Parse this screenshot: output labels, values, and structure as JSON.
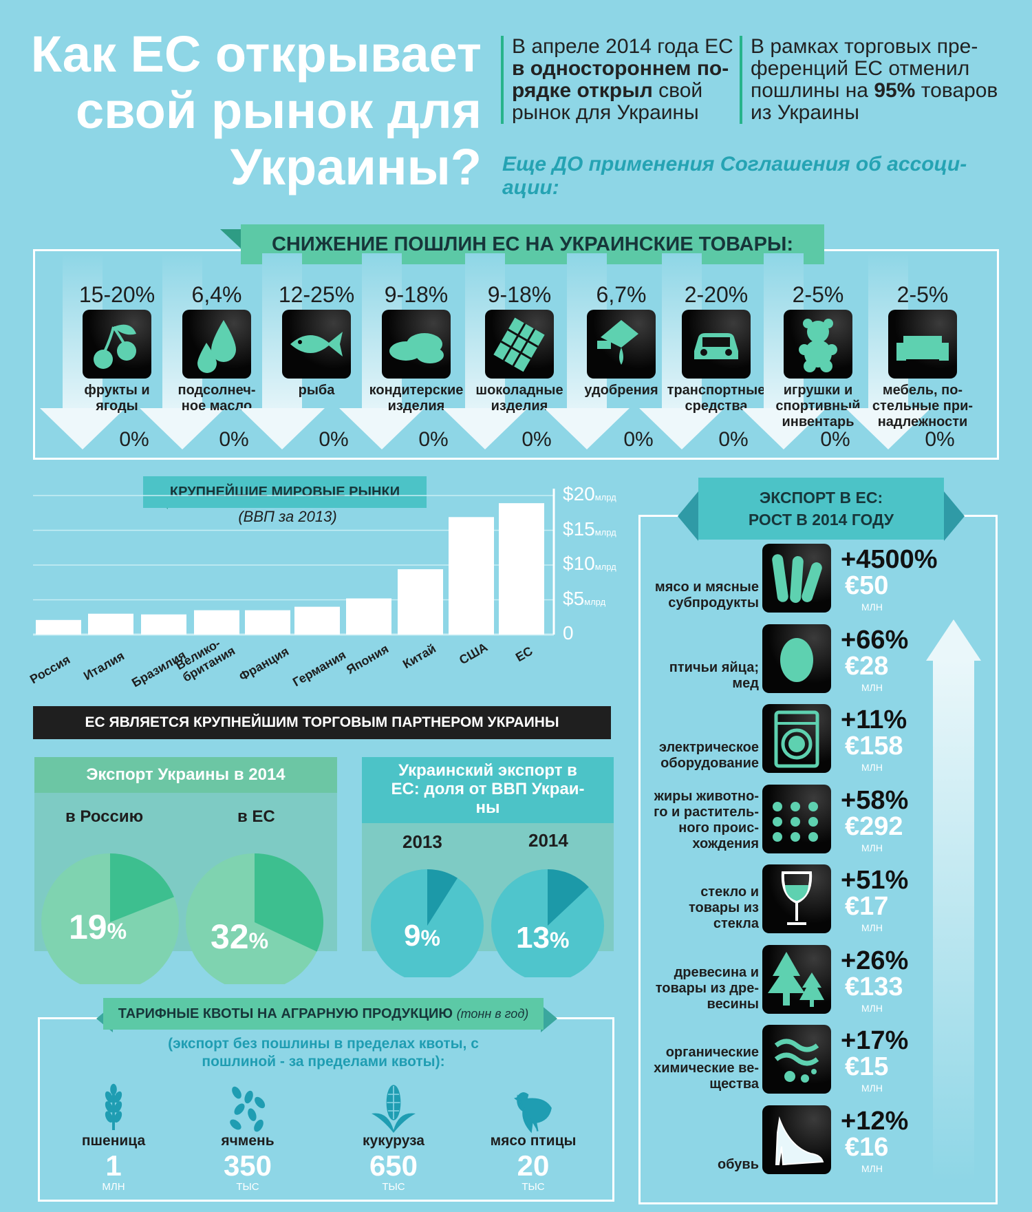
{
  "header": {
    "title_lines": [
      "Как ЕС открывает",
      "свой рынок для",
      "Украины?"
    ],
    "intro_left": {
      "lines": [
        [
          {
            "t": "В апреле 2014 года ЕС",
            "b": false
          }
        ],
        [
          {
            "t": "в одностороннем по-",
            "b": true
          }
        ],
        [
          {
            "t": "рядке открыл",
            "b": true
          },
          {
            "t": " свой",
            "b": false
          }
        ],
        [
          {
            "t": "рынок для Украины",
            "b": false
          }
        ]
      ]
    },
    "intro_right": {
      "lines": [
        [
          {
            "t": "В рамках торговых пре-",
            "b": false
          }
        ],
        [
          {
            "t": "ференций ЕС отменил",
            "b": false
          }
        ],
        [
          {
            "t": "пошлины на ",
            "b": false
          },
          {
            "t": "95%",
            "b": true
          },
          {
            "t": " товаров",
            "b": false
          }
        ],
        [
          {
            "t": "из Украины",
            "b": false
          }
        ]
      ]
    },
    "subnote_lines": [
      "Еще ДО применения Соглашения об ассоци-",
      "ации:"
    ]
  },
  "tariffs": {
    "title": "СНИЖЕНИЕ ПОШЛИН ЕС НА УКРАИНСКИЕ ТОВАРЫ:",
    "items": [
      {
        "from": "15-20%",
        "to": "0%",
        "name_lines": [
          "фрукты и",
          "ягоды"
        ],
        "icon": "cherry-icon"
      },
      {
        "from": "6,4%",
        "to": "0%",
        "name_lines": [
          "подсолнеч-",
          "ное масло"
        ],
        "icon": "oil-drops-icon"
      },
      {
        "from": "12-25%",
        "to": "0%",
        "name_lines": [
          "рыба"
        ],
        "icon": "fish-icon"
      },
      {
        "from": "9-18%",
        "to": "0%",
        "name_lines": [
          "кондитерские",
          "изделия"
        ],
        "icon": "bread-icon"
      },
      {
        "from": "9-18%",
        "to": "0%",
        "name_lines": [
          "шоколадные",
          "изделия"
        ],
        "icon": "chocolate-icon"
      },
      {
        "from": "6,7%",
        "to": "0%",
        "name_lines": [
          "удобрения"
        ],
        "icon": "fertilizer-icon"
      },
      {
        "from": "2-20%",
        "to": "0%",
        "name_lines": [
          "транспортные",
          "средства"
        ],
        "icon": "car-icon"
      },
      {
        "from": "2-5%",
        "to": "0%",
        "name_lines": [
          "игрушки и",
          "спортивный",
          "инвентарь"
        ],
        "icon": "teddy-bear-icon"
      },
      {
        "from": "2-5%",
        "to": "0%",
        "name_lines": [
          "мебель, по-",
          "стельные при-",
          "надлежности"
        ],
        "icon": "sofa-icon"
      }
    ]
  },
  "markets": {
    "title": "КРУПНЕЙШИЕ МИРОВЫЕ РЫНКИ",
    "subtitle": "(ВВП за 2013)",
    "tick_labels": [
      {
        "v": 20,
        "t": "$20",
        "u": "млрд"
      },
      {
        "v": 15,
        "t": "$15",
        "u": "млрд"
      },
      {
        "v": 10,
        "t": "$10",
        "u": "млрд"
      },
      {
        "v": 5,
        "t": "$5",
        "u": "млрд"
      },
      {
        "v": 0,
        "t": "0",
        "u": ""
      }
    ]
  },
  "chart_data": [
    {
      "type": "bar",
      "title": "КРУПНЕЙШИЕ МИРОВЫЕ РЫНКИ",
      "subtitle": "(ВВП за 2013)",
      "categories": [
        "Россия",
        "Италия",
        "Бразилия",
        "Велико-британия",
        "Франция",
        "Германия",
        "Япония",
        "Китай",
        "США",
        "ЕС"
      ],
      "values": [
        2.1,
        3.0,
        2.9,
        3.5,
        3.5,
        4.0,
        5.2,
        9.4,
        16.9,
        18.9
      ],
      "ylim": [
        0,
        20
      ],
      "yunit": "$ млрд"
    },
    {
      "type": "pie",
      "title": "Экспорт Украины в 2014",
      "series": [
        {
          "name": "в Россию",
          "values": [
            19,
            81
          ]
        },
        {
          "name": "в ЕС",
          "values": [
            32,
            68
          ]
        }
      ]
    },
    {
      "type": "pie",
      "title": "Украинский экспорт в ЕС: доля от ВВП Украины",
      "series": [
        {
          "name": "2013",
          "values": [
            9,
            91
          ]
        },
        {
          "name": "2014",
          "values": [
            13,
            87
          ]
        }
      ]
    }
  ],
  "partner_banner": "ЕС ЯВЛЯЕТСЯ КРУПНЕЙШИМ ТОРГОВЫМ ПАРТНЕРОМ УКРАИНЫ",
  "pies_export": {
    "title": "Экспорт Украины в 2014",
    "items": [
      {
        "label": "в Россию",
        "value": "19",
        "unit": "%",
        "pct": 19
      },
      {
        "label": "в ЕС",
        "value": "32",
        "unit": "%",
        "pct": 32
      }
    ]
  },
  "pies_gdp": {
    "title_lines": [
      "Украинский экспорт в",
      "ЕС: доля от ВВП Украи-",
      "ны"
    ],
    "items": [
      {
        "label": "2013",
        "value": "9",
        "unit": "%",
        "pct": 9
      },
      {
        "label": "2014",
        "value": "13",
        "unit": "%",
        "pct": 13
      }
    ]
  },
  "quotas": {
    "title": "ТАРИФНЫЕ КВОТЫ НА АГРАРНУЮ ПРОДУКЦИЮ",
    "title_note": "(тонн в год)",
    "note_lines": [
      "(экспорт без пошлины в пределах квоты, с",
      "пошлиной - за пределами квоты):"
    ],
    "items": [
      {
        "name": "пшеница",
        "value": "1",
        "unit": "МЛН",
        "icon": "wheat-icon"
      },
      {
        "name": "ячмень",
        "value": "350",
        "unit": "ТЫС",
        "icon": "barley-icon"
      },
      {
        "name": "кукуруза",
        "value": "650",
        "unit": "ТЫС",
        "icon": "corn-icon"
      },
      {
        "name": "мясо птицы",
        "value": "20",
        "unit": "ТЫС",
        "icon": "chicken-icon"
      }
    ]
  },
  "exports": {
    "title_lines": [
      "ЭКСПОРТ В ЕС:",
      "РОСТ В 2014 ГОДУ"
    ],
    "items": [
      {
        "name_lines": [
          "мясо и мясные",
          "субпродукты"
        ],
        "pct": "+4500%",
        "value": "€50",
        "unit": "МЛН",
        "icon": "sausage-icon"
      },
      {
        "name_lines": [
          "птичьи яйца;",
          "мед"
        ],
        "pct": "+66%",
        "value": "€28",
        "unit": "МЛН",
        "icon": "egg-icon"
      },
      {
        "name_lines": [
          "электрическое",
          "оборудование"
        ],
        "pct": "+11%",
        "value": "€158",
        "unit": "МЛН",
        "icon": "washing-machine-icon"
      },
      {
        "name_lines": [
          "жиры животно-",
          "го и раститель-",
          "ного проис-",
          "хождения"
        ],
        "pct": "+58%",
        "value": "€292",
        "unit": "МЛН",
        "icon": "dots-icon"
      },
      {
        "name_lines": [
          "стекло и",
          "товары из",
          "стекла"
        ],
        "pct": "+51%",
        "value": "€17",
        "unit": "МЛН",
        "icon": "wine-glass-icon"
      },
      {
        "name_lines": [
          "древесина и",
          "товары из дре-",
          "весины"
        ],
        "pct": "+26%",
        "value": "€133",
        "unit": "МЛН",
        "icon": "fir-tree-icon"
      },
      {
        "name_lines": [
          "органические",
          "химические ве-",
          "щества"
        ],
        "pct": "+17%",
        "value": "€15",
        "unit": "МЛН",
        "icon": "chemicals-icon"
      },
      {
        "name_lines": [
          "обувь"
        ],
        "pct": "+12%",
        "value": "€16",
        "unit": "МЛН",
        "icon": "high-heel-icon"
      }
    ]
  },
  "colors": {
    "background": "#8ed6e6",
    "green": "#5cc9a6",
    "teal": "#4cc3c7",
    "dark_teal": "#1c99a8",
    "pie_green_dark": "#3dbf8f",
    "pie_green_light": "#7fd3b0",
    "white": "#ffffff"
  }
}
